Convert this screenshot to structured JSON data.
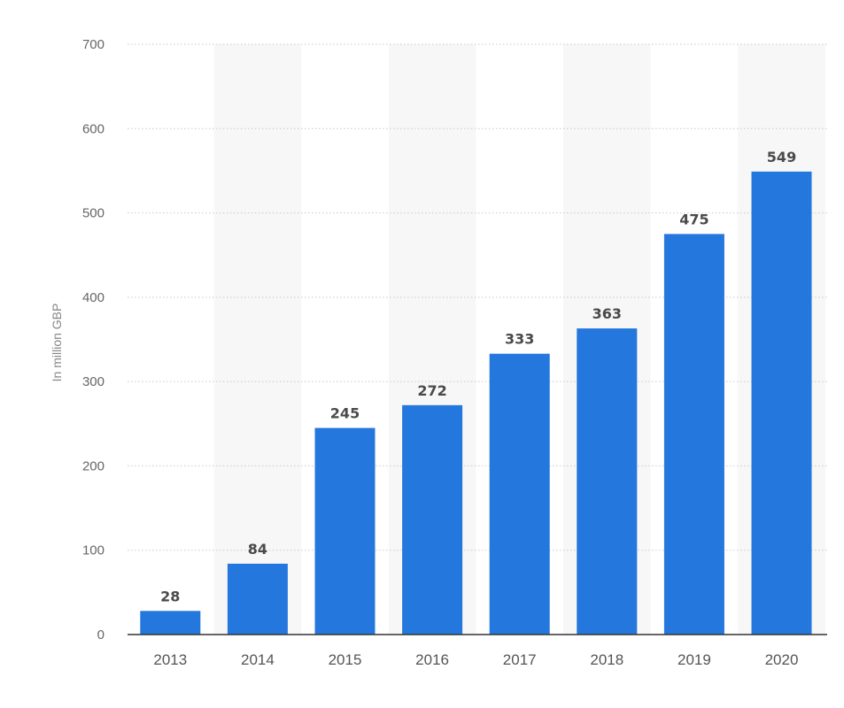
{
  "chart_data": {
    "type": "bar",
    "title": "",
    "xlabel": "",
    "ylabel": "In million GBP",
    "categories": [
      "2013",
      "2014",
      "2015",
      "2016",
      "2017",
      "2018",
      "2019",
      "2020"
    ],
    "values": [
      28,
      84,
      245,
      272,
      333,
      363,
      475,
      549
    ],
    "ylim": [
      0,
      700
    ],
    "yticks": [
      0,
      100,
      200,
      300,
      400,
      500,
      600,
      700
    ],
    "grid": true,
    "legend": "none",
    "colors": {
      "bar": "#2477dd",
      "band": "#f7f7f7",
      "grid": "#c9c9c9",
      "axis": "#333333"
    }
  }
}
